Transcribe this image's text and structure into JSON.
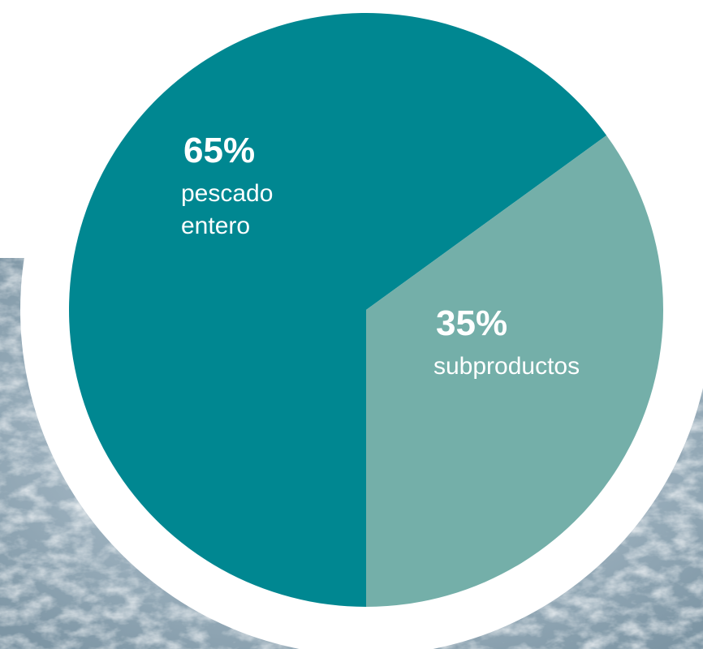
{
  "chart_data": {
    "type": "pie",
    "slices": [
      {
        "percent_label": "65%",
        "category_lines": [
          "pescado",
          "entero"
        ],
        "value": 65,
        "color": "#008791"
      },
      {
        "percent_label": "35%",
        "category_lines": [
          "subproductos"
        ],
        "value": 35,
        "color": "#74afa9"
      }
    ],
    "title": "",
    "legend": "none"
  },
  "background": {
    "kind": "sea-water-photo",
    "colors": [
      "#8fa4b0",
      "#d9e3e8"
    ]
  }
}
